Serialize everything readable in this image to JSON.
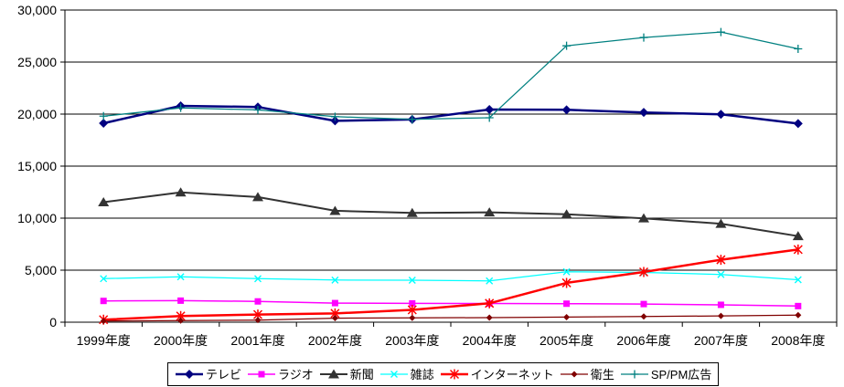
{
  "chart_data": {
    "type": "line",
    "title": "",
    "xlabel": "",
    "ylabel": "",
    "ylim": [
      0,
      30000
    ],
    "y_tick_step": 5000,
    "y_tick_labels": [
      "0",
      "5,000",
      "10,000",
      "15,000",
      "20,000",
      "25,000",
      "30,000"
    ],
    "grid": "horizontal",
    "legend_position": "bottom",
    "categories": [
      "1999年度",
      "2000年度",
      "2001年度",
      "2002年度",
      "2003年度",
      "2004年度",
      "2005年度",
      "2006年度",
      "2007年度",
      "2008年度"
    ],
    "series": [
      {
        "name": "テレビ",
        "color": "#000080",
        "marker": "diamond",
        "line_width": 2.5,
        "values": [
          19121,
          20793,
          20681,
          19351,
          19480,
          20436,
          20411,
          20161,
          19981,
          19092
        ]
      },
      {
        "name": "ラジオ",
        "color": "#FF00FF",
        "marker": "square",
        "line_width": 1.5,
        "values": [
          2043,
          2071,
          1998,
          1837,
          1807,
          1795,
          1778,
          1744,
          1671,
          1549
        ]
      },
      {
        "name": "新聞",
        "color": "#333333",
        "marker": "triangle",
        "line_width": 2,
        "values": [
          11535,
          12474,
          12027,
          10707,
          10500,
          10559,
          10377,
          9986,
          9462,
          8276
        ]
      },
      {
        "name": "雑誌",
        "color": "#00FFFF",
        "marker": "x",
        "line_width": 1.25,
        "values": [
          4183,
          4369,
          4180,
          4051,
          4035,
          3970,
          4842,
          4777,
          4585,
          4078
        ]
      },
      {
        "name": "インターネット",
        "color": "#FF0000",
        "marker": "asterisk",
        "line_width": 2.5,
        "values": [
          241,
          590,
          735,
          845,
          1183,
          1814,
          3777,
          4826,
          6003,
          6983
        ]
      },
      {
        "name": "衛生",
        "color": "#800000",
        "marker": "diamond-small",
        "line_width": 1.25,
        "values": [
          115,
          150,
          205,
          390,
          418,
          435,
          487,
          544,
          603,
          676
        ]
      },
      {
        "name": "SP/PM広告",
        "color": "#008080",
        "marker": "plus",
        "line_width": 1.25,
        "values": [
          19800,
          20600,
          20400,
          19750,
          19500,
          19650,
          26563,
          27361,
          27886,
          26272
        ]
      }
    ]
  }
}
